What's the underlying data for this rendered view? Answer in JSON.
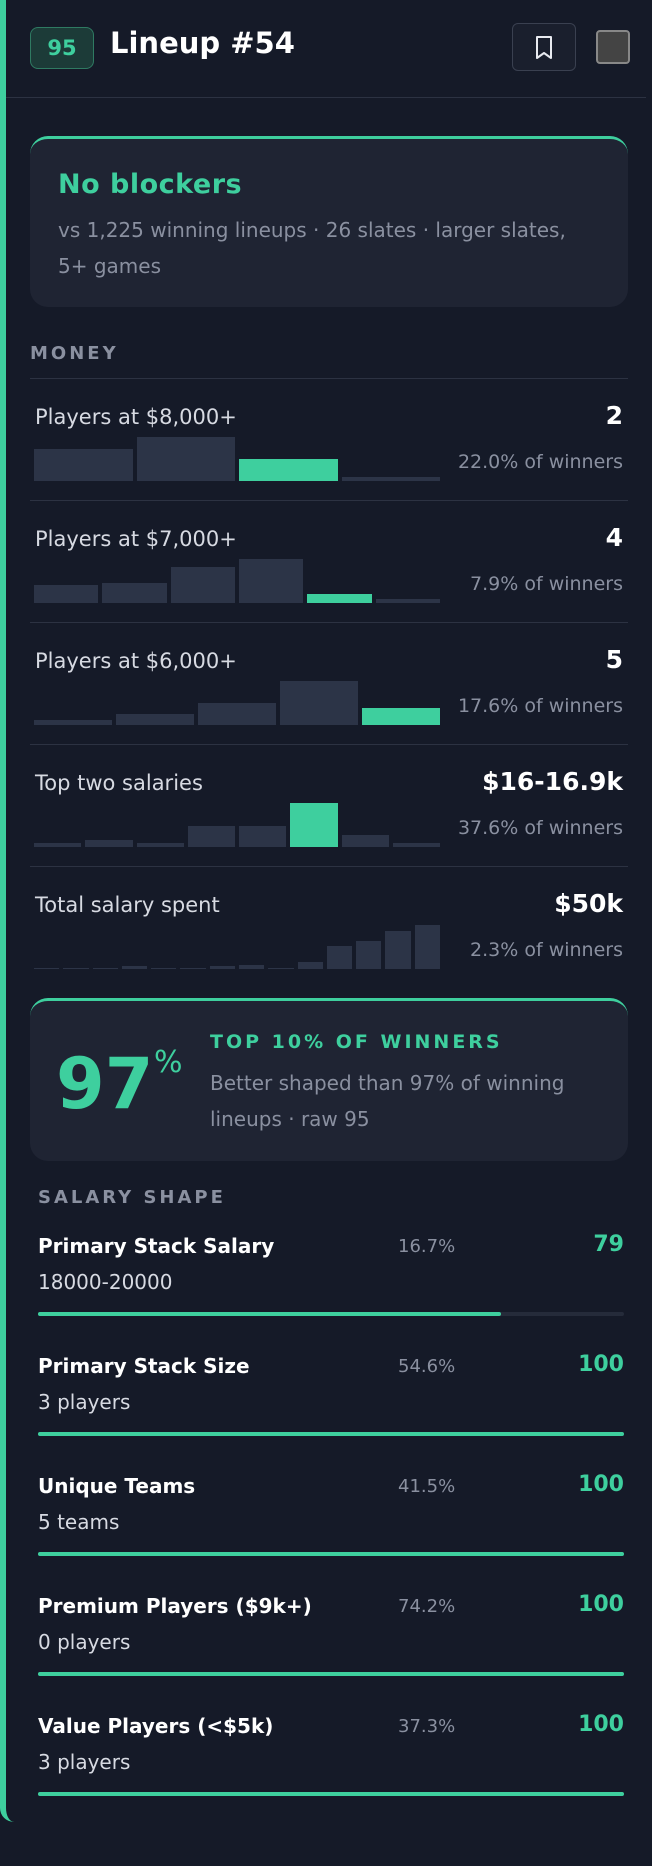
{
  "header": {
    "score": "95",
    "title": "Lineup #54"
  },
  "status": {
    "title": "No blockers",
    "detail": "vs 1,225 winning lineups · 26 slates · larger slates, 5+ games"
  },
  "money": {
    "heading": "MONEY",
    "rows": [
      {
        "label": "Players at $8,000+",
        "value": "2",
        "share": "22.0% of winners",
        "histogram": [
          26,
          36,
          18,
          3
        ],
        "highlight": 2
      },
      {
        "label": "Players at $7,000+",
        "value": "4",
        "share": "7.9% of winners",
        "histogram": [
          15,
          17,
          30,
          37,
          8,
          3
        ],
        "highlight": 4
      },
      {
        "label": "Players at $6,000+",
        "value": "5",
        "share": "17.6% of winners",
        "histogram": [
          4,
          9,
          18,
          36,
          14
        ],
        "highlight": 4
      },
      {
        "label": "Top two salaries",
        "value": "$16-16.9k",
        "share": "37.6% of winners",
        "histogram": [
          3,
          6,
          3,
          17,
          17,
          36,
          10,
          3
        ],
        "highlight": 5
      },
      {
        "label": "Total salary spent",
        "value": "$50k",
        "share": "2.3% of winners",
        "histogram": [
          0,
          0,
          1,
          2,
          1,
          0,
          2,
          3,
          1,
          5,
          16,
          19,
          26,
          30
        ]
      }
    ]
  },
  "percentile": {
    "value": "97",
    "unit": "%",
    "tier": "TOP 10% OF WINNERS",
    "detail": "Better shaped than 97% of winning lineups · raw 95"
  },
  "salary_shape": {
    "heading": "SALARY SHAPE",
    "rows": [
      {
        "label": "Primary Stack Salary",
        "detail": "18000-20000",
        "share": "16.7%",
        "score": 79
      },
      {
        "label": "Primary Stack Size",
        "detail": "3 players",
        "share": "54.6%",
        "score": 100
      },
      {
        "label": "Unique Teams",
        "detail": "5 teams",
        "share": "41.5%",
        "score": 100
      },
      {
        "label": "Premium Players ($9k+)",
        "detail": "0 players",
        "share": "74.2%",
        "score": 100
      },
      {
        "label": "Value Players (<$5k)",
        "detail": "3 players",
        "share": "37.3%",
        "score": 100
      }
    ]
  }
}
